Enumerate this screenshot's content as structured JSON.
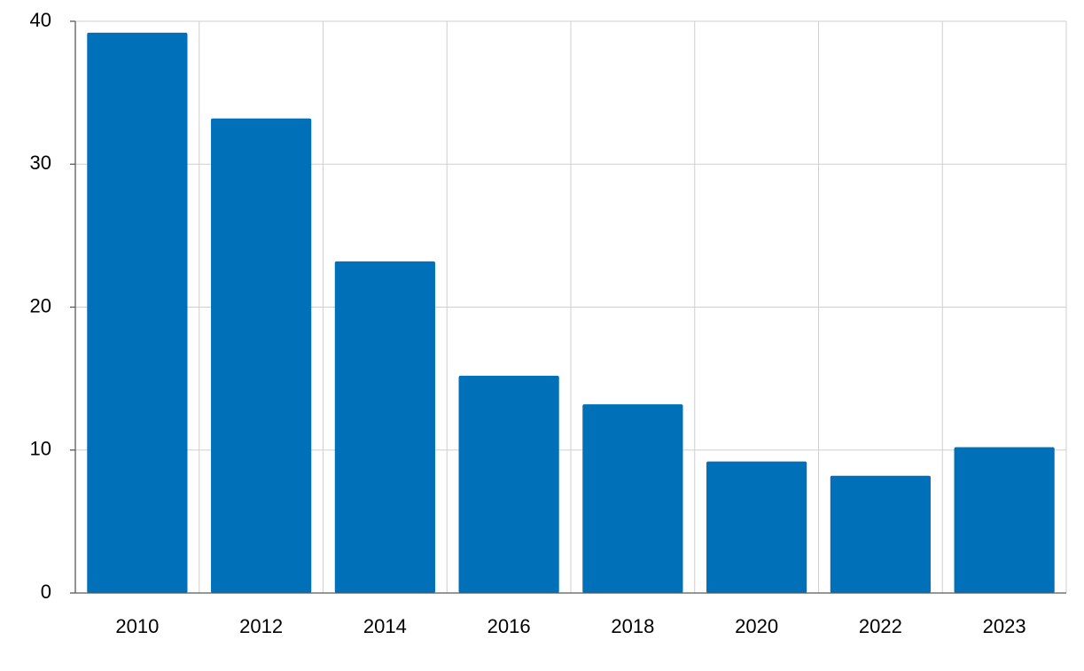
{
  "chart_data": {
    "type": "bar",
    "categories": [
      "2010",
      "2012",
      "2014",
      "2016",
      "2018",
      "2020",
      "2022",
      "2023"
    ],
    "values": [
      39.2,
      33.2,
      23.2,
      15.2,
      13.2,
      9.2,
      8.2,
      10.2
    ],
    "color": "#0070b8",
    "ylim": [
      0,
      40
    ],
    "yticks": [
      0,
      10,
      20,
      30,
      40
    ],
    "grid": true
  }
}
